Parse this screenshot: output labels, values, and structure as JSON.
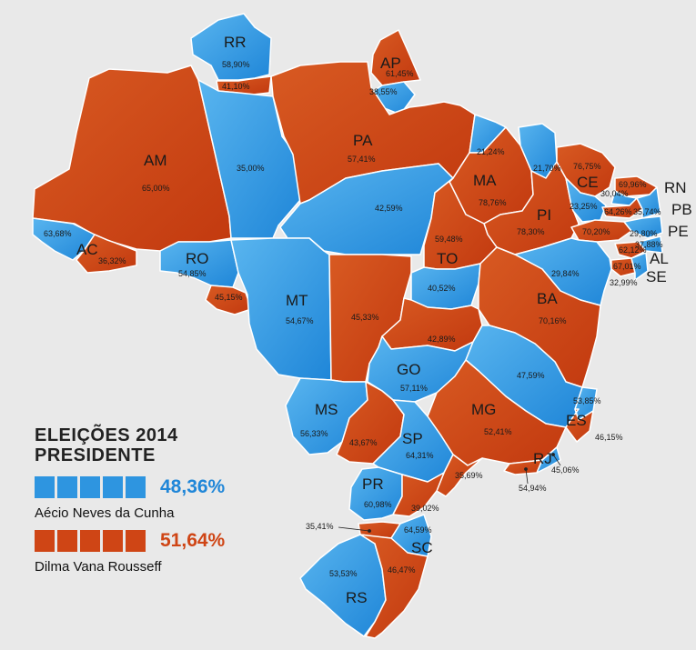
{
  "legend": {
    "title_line1": "ELEIÇÕES 2014",
    "title_line2": "PRESIDENTE",
    "aecio": {
      "pct": "48,36%",
      "name": "Aécio Neves da Cunha",
      "color": "#2e95e0"
    },
    "dilma": {
      "pct": "51,64%",
      "name": "Dilma Vana Rousseff",
      "color": "#cf4515"
    }
  },
  "states": {
    "RR": {
      "code": "RR",
      "aecio": "58,90%",
      "dilma": "41,10%"
    },
    "AP": {
      "code": "AP",
      "aecio": "38,55%",
      "dilma": "61,45%"
    },
    "AM": {
      "code": "AM",
      "aecio": "35,00%",
      "dilma": "65,00%"
    },
    "PA": {
      "code": "PA",
      "aecio": "42,59%",
      "dilma": "57,41%"
    },
    "AC": {
      "code": "AC",
      "aecio": "63,68%",
      "dilma": "36,32%"
    },
    "RO": {
      "code": "RO",
      "aecio": "54,85%",
      "dilma": "45,15%"
    },
    "MT": {
      "code": "MT",
      "aecio": "54,67%",
      "dilma": "45,33%"
    },
    "MA": {
      "code": "MA",
      "aecio": "21,24%",
      "dilma": "78,76%"
    },
    "PI": {
      "code": "PI",
      "aecio": "21,70%",
      "dilma": "78,30%"
    },
    "CE": {
      "code": "CE",
      "aecio": "23,25%",
      "dilma": "76,75%"
    },
    "RN": {
      "code": "RN",
      "aecio": "30,04%",
      "dilma": "69,96%"
    },
    "PB": {
      "code": "PB",
      "aecio": "35,74%",
      "dilma": "64,26%"
    },
    "PE": {
      "code": "PE",
      "aecio": "29,80%",
      "dilma": "70,20%"
    },
    "AL": {
      "code": "AL",
      "aecio": "37,88%",
      "dilma": "62,12%"
    },
    "SE": {
      "code": "SE",
      "aecio": "32,99%",
      "dilma": "67,01%"
    },
    "TO": {
      "code": "TO",
      "aecio": "40,52%",
      "dilma": "59,48%"
    },
    "BA": {
      "code": "BA",
      "aecio": "29,84%",
      "dilma": "70,16%"
    },
    "GO": {
      "code": "GO",
      "aecio": "57,11%",
      "dilma": "42,89%"
    },
    "MG": {
      "code": "MG",
      "aecio": "47,59%",
      "dilma": "52,41%"
    },
    "ES": {
      "code": "ES",
      "aecio": "53,85%",
      "dilma": "46,15%"
    },
    "MS": {
      "code": "MS",
      "aecio": "56,33%",
      "dilma": "43,67%"
    },
    "SP": {
      "code": "SP",
      "aecio": "64,31%",
      "dilma": "35,69%"
    },
    "RJ": {
      "code": "RJ",
      "aecio": "45,06%",
      "dilma": "54,94%"
    },
    "PR": {
      "code": "PR",
      "aecio": "60,98%",
      "dilma": "39,02%"
    },
    "SC": {
      "code": "SC",
      "aecio": "64,59%",
      "dilma": "35,41%"
    },
    "RS": {
      "code": "RS",
      "aecio": "53,53%",
      "dilma": "46,47%"
    }
  }
}
